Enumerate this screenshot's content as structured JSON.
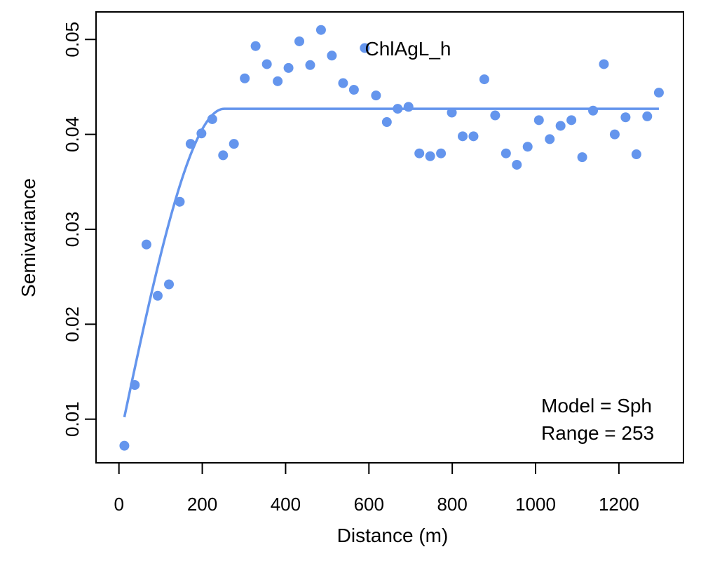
{
  "chart_data": {
    "type": "scatter",
    "title": "ChlAgL_h",
    "xlabel": "Distance (m)",
    "ylabel": "Semivariance",
    "xlim": [
      -55,
      1355
    ],
    "ylim": [
      0.0054,
      0.0529
    ],
    "xticks": [
      "0",
      "200",
      "400",
      "600",
      "800",
      "1000",
      "1200"
    ],
    "yticks": [
      "0.01",
      "0.02",
      "0.03",
      "0.04",
      "0.05"
    ],
    "grid": false,
    "colors": {
      "points": "#6495ED",
      "model": "#6495ED"
    },
    "annotations": [
      "Model = Sph",
      "Range = 253"
    ],
    "series": [
      {
        "kind": "points",
        "x": [
          13,
          38,
          66,
          93,
          120,
          146,
          172,
          198,
          224,
          250,
          276,
          302,
          328,
          355,
          381,
          407,
          433,
          459,
          485,
          511,
          538,
          564,
          590,
          617,
          643,
          669,
          695,
          721,
          747,
          773,
          799,
          825,
          851,
          877,
          903,
          929,
          955,
          981,
          1008,
          1034,
          1060,
          1086,
          1112,
          1138,
          1164,
          1190,
          1216,
          1242,
          1268,
          1296
        ],
        "y": [
          0.0072,
          0.0136,
          0.0284,
          0.023,
          0.0242,
          0.0329,
          0.039,
          0.0401,
          0.0416,
          0.0378,
          0.039,
          0.0459,
          0.0493,
          0.0474,
          0.0456,
          0.047,
          0.0498,
          0.0473,
          0.051,
          0.0483,
          0.0454,
          0.0447,
          0.0491,
          0.0441,
          0.0413,
          0.0427,
          0.0429,
          0.038,
          0.0377,
          0.038,
          0.0423,
          0.0398,
          0.0398,
          0.0458,
          0.042,
          0.038,
          0.0368,
          0.0387,
          0.0415,
          0.0395,
          0.0409,
          0.0415,
          0.0376,
          0.0425,
          0.0474,
          0.04,
          0.0418,
          0.0379,
          0.0419,
          0.0444
        ]
      },
      {
        "kind": "model",
        "model": "spherical",
        "nugget": 0.0075,
        "sill": 0.0427,
        "range": 253,
        "xmin": 13,
        "xmax": 1296
      }
    ]
  }
}
